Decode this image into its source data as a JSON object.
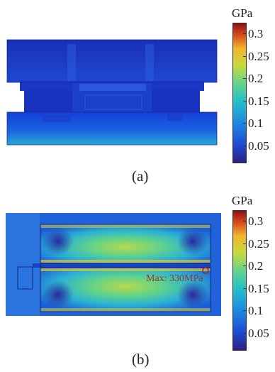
{
  "panel_a": {
    "caption": "(a)",
    "colorbar": {
      "unit": "GPa",
      "ticks": [
        "0.3",
        "0.25",
        "0.2",
        "0.15",
        "0.1",
        "0.05"
      ]
    }
  },
  "panel_b": {
    "caption": "(b)",
    "annotation": "Max: 330MPa",
    "colorbar": {
      "unit": "GPa",
      "ticks": [
        "0.3",
        "0.25",
        "0.2",
        "0.15",
        "0.1",
        "0.05"
      ]
    }
  },
  "colors": {
    "colormap_low": "#2a1f86",
    "colormap_mid": "#63d58a",
    "colormap_high": "#8c1216",
    "annotation": "#a0302a"
  }
}
